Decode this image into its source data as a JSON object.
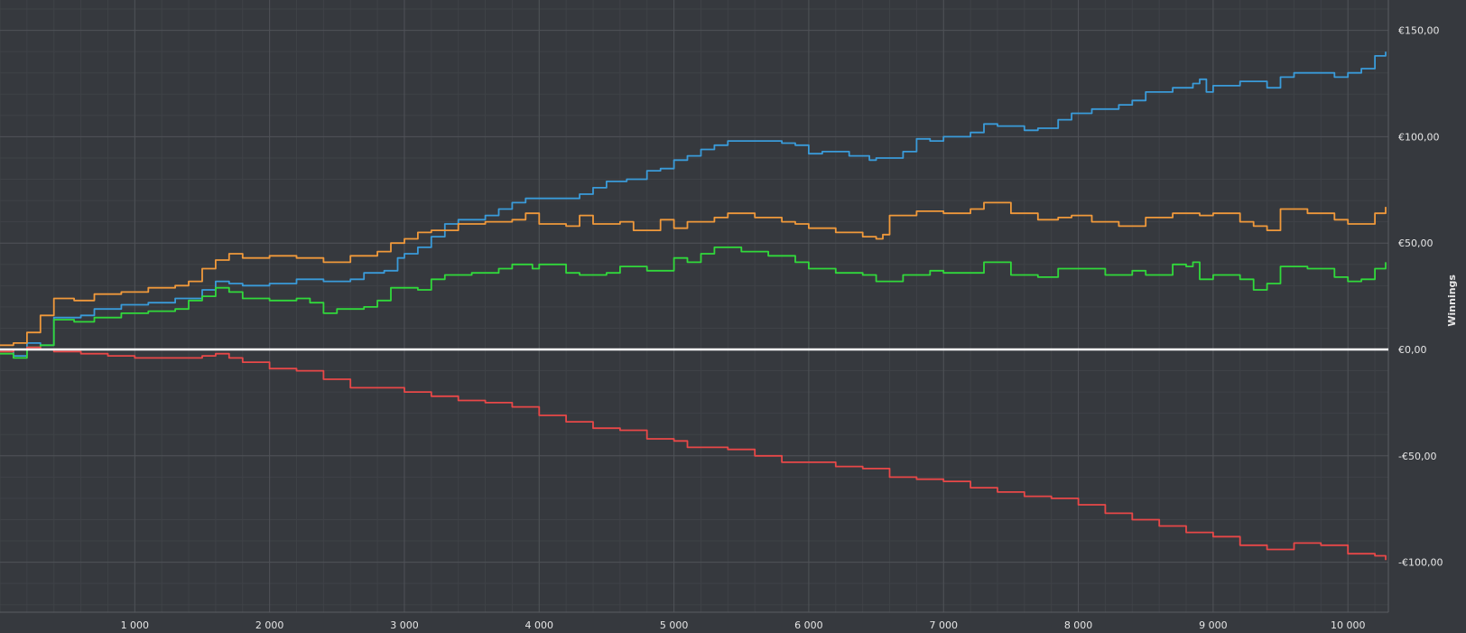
{
  "chart_data": {
    "type": "line",
    "title": "",
    "xlabel": "",
    "ylabel": "Winnings",
    "xlim": [
      0,
      10300
    ],
    "ylim": [
      -124,
      164
    ],
    "x_ticks": [
      1000,
      2000,
      3000,
      4000,
      5000,
      6000,
      7000,
      8000,
      9000,
      10000
    ],
    "x_tick_labels": [
      "1 000",
      "2 000",
      "3 000",
      "4 000",
      "5 000",
      "6 000",
      "7 000",
      "8 000",
      "9 000",
      "10 000"
    ],
    "y_ticks": [
      150,
      100,
      50,
      0,
      -50,
      -100
    ],
    "y_tick_labels": [
      "€150,00",
      "€100,00",
      "€50,00",
      "€0,00",
      "-€50,00",
      "-€100,00"
    ],
    "grid": true,
    "legend": "none",
    "zero_line_color": "#ffffff",
    "background_color": "#36393e",
    "grid_color": "#4f5257",
    "series": [
      {
        "color": "#3a9bd9",
        "points": [
          [
            0,
            0
          ],
          [
            100,
            -3
          ],
          [
            200,
            3
          ],
          [
            300,
            2
          ],
          [
            400,
            15
          ],
          [
            600,
            16
          ],
          [
            700,
            19
          ],
          [
            900,
            21
          ],
          [
            1100,
            22
          ],
          [
            1300,
            24
          ],
          [
            1500,
            28
          ],
          [
            1600,
            32
          ],
          [
            1700,
            31
          ],
          [
            1800,
            30
          ],
          [
            2000,
            31
          ],
          [
            2200,
            33
          ],
          [
            2400,
            32
          ],
          [
            2600,
            33
          ],
          [
            2700,
            36
          ],
          [
            2850,
            37
          ],
          [
            2950,
            43
          ],
          [
            3000,
            45
          ],
          [
            3100,
            48
          ],
          [
            3200,
            53
          ],
          [
            3300,
            59
          ],
          [
            3400,
            61
          ],
          [
            3600,
            63
          ],
          [
            3700,
            66
          ],
          [
            3800,
            69
          ],
          [
            3900,
            71
          ],
          [
            4100,
            71
          ],
          [
            4300,
            73
          ],
          [
            4400,
            76
          ],
          [
            4500,
            79
          ],
          [
            4650,
            80
          ],
          [
            4800,
            84
          ],
          [
            4900,
            85
          ],
          [
            5000,
            89
          ],
          [
            5100,
            91
          ],
          [
            5200,
            94
          ],
          [
            5300,
            96
          ],
          [
            5400,
            98
          ],
          [
            5700,
            98
          ],
          [
            5800,
            97
          ],
          [
            5900,
            96
          ],
          [
            6000,
            92
          ],
          [
            6100,
            93
          ],
          [
            6300,
            91
          ],
          [
            6450,
            89
          ],
          [
            6500,
            90
          ],
          [
            6700,
            93
          ],
          [
            6800,
            99
          ],
          [
            6900,
            98
          ],
          [
            7000,
            100
          ],
          [
            7100,
            100
          ],
          [
            7200,
            102
          ],
          [
            7300,
            106
          ],
          [
            7400,
            105
          ],
          [
            7600,
            103
          ],
          [
            7700,
            104
          ],
          [
            7850,
            108
          ],
          [
            7950,
            111
          ],
          [
            8100,
            113
          ],
          [
            8300,
            115
          ],
          [
            8400,
            117
          ],
          [
            8500,
            121
          ],
          [
            8700,
            123
          ],
          [
            8850,
            125
          ],
          [
            8900,
            127
          ],
          [
            8950,
            121
          ],
          [
            9000,
            124
          ],
          [
            9200,
            126
          ],
          [
            9300,
            126
          ],
          [
            9400,
            123
          ],
          [
            9500,
            128
          ],
          [
            9600,
            130
          ],
          [
            9800,
            130
          ],
          [
            9900,
            128
          ],
          [
            10000,
            130
          ],
          [
            10100,
            132
          ],
          [
            10200,
            138
          ],
          [
            10280,
            140
          ]
        ]
      },
      {
        "color": "#f0993b",
        "points": [
          [
            0,
            2
          ],
          [
            100,
            3
          ],
          [
            200,
            8
          ],
          [
            300,
            16
          ],
          [
            400,
            24
          ],
          [
            550,
            23
          ],
          [
            700,
            26
          ],
          [
            900,
            27
          ],
          [
            1100,
            29
          ],
          [
            1300,
            30
          ],
          [
            1400,
            32
          ],
          [
            1500,
            38
          ],
          [
            1600,
            42
          ],
          [
            1700,
            45
          ],
          [
            1800,
            43
          ],
          [
            2000,
            44
          ],
          [
            2200,
            43
          ],
          [
            2400,
            41
          ],
          [
            2600,
            44
          ],
          [
            2800,
            46
          ],
          [
            2900,
            50
          ],
          [
            3000,
            52
          ],
          [
            3100,
            55
          ],
          [
            3200,
            56
          ],
          [
            3400,
            59
          ],
          [
            3600,
            60
          ],
          [
            3800,
            61
          ],
          [
            3900,
            64
          ],
          [
            4000,
            59
          ],
          [
            4200,
            58
          ],
          [
            4300,
            63
          ],
          [
            4400,
            59
          ],
          [
            4600,
            60
          ],
          [
            4700,
            56
          ],
          [
            4900,
            61
          ],
          [
            5000,
            57
          ],
          [
            5100,
            60
          ],
          [
            5300,
            62
          ],
          [
            5400,
            64
          ],
          [
            5600,
            62
          ],
          [
            5800,
            60
          ],
          [
            5900,
            59
          ],
          [
            6000,
            57
          ],
          [
            6200,
            55
          ],
          [
            6400,
            53
          ],
          [
            6500,
            52
          ],
          [
            6550,
            54
          ],
          [
            6600,
            63
          ],
          [
            6800,
            65
          ],
          [
            7000,
            64
          ],
          [
            7200,
            66
          ],
          [
            7300,
            69
          ],
          [
            7500,
            64
          ],
          [
            7700,
            61
          ],
          [
            7850,
            62
          ],
          [
            7950,
            63
          ],
          [
            8100,
            60
          ],
          [
            8300,
            58
          ],
          [
            8500,
            62
          ],
          [
            8700,
            64
          ],
          [
            8900,
            63
          ],
          [
            9000,
            64
          ],
          [
            9200,
            60
          ],
          [
            9300,
            58
          ],
          [
            9400,
            56
          ],
          [
            9500,
            66
          ],
          [
            9700,
            64
          ],
          [
            9900,
            61
          ],
          [
            10000,
            59
          ],
          [
            10100,
            59
          ],
          [
            10200,
            64
          ],
          [
            10280,
            67
          ]
        ]
      },
      {
        "color": "#31d93b",
        "points": [
          [
            0,
            -2
          ],
          [
            100,
            -4
          ],
          [
            200,
            1
          ],
          [
            300,
            2
          ],
          [
            400,
            14
          ],
          [
            550,
            13
          ],
          [
            700,
            15
          ],
          [
            900,
            17
          ],
          [
            1100,
            18
          ],
          [
            1300,
            19
          ],
          [
            1400,
            23
          ],
          [
            1500,
            25
          ],
          [
            1600,
            29
          ],
          [
            1700,
            27
          ],
          [
            1800,
            24
          ],
          [
            2000,
            23
          ],
          [
            2200,
            24
          ],
          [
            2300,
            22
          ],
          [
            2400,
            17
          ],
          [
            2500,
            19
          ],
          [
            2700,
            20
          ],
          [
            2800,
            23
          ],
          [
            2900,
            29
          ],
          [
            3100,
            28
          ],
          [
            3200,
            33
          ],
          [
            3300,
            35
          ],
          [
            3500,
            36
          ],
          [
            3700,
            38
          ],
          [
            3800,
            40
          ],
          [
            3950,
            38
          ],
          [
            4000,
            40
          ],
          [
            4200,
            36
          ],
          [
            4300,
            35
          ],
          [
            4500,
            36
          ],
          [
            4600,
            39
          ],
          [
            4800,
            37
          ],
          [
            5000,
            43
          ],
          [
            5100,
            41
          ],
          [
            5200,
            45
          ],
          [
            5300,
            48
          ],
          [
            5500,
            46
          ],
          [
            5700,
            44
          ],
          [
            5900,
            41
          ],
          [
            6000,
            38
          ],
          [
            6200,
            36
          ],
          [
            6400,
            35
          ],
          [
            6500,
            32
          ],
          [
            6700,
            35
          ],
          [
            6900,
            37
          ],
          [
            7000,
            36
          ],
          [
            7200,
            36
          ],
          [
            7300,
            41
          ],
          [
            7500,
            35
          ],
          [
            7700,
            34
          ],
          [
            7850,
            38
          ],
          [
            8000,
            38
          ],
          [
            8200,
            35
          ],
          [
            8400,
            37
          ],
          [
            8500,
            35
          ],
          [
            8700,
            40
          ],
          [
            8800,
            39
          ],
          [
            8850,
            41
          ],
          [
            8900,
            33
          ],
          [
            9000,
            35
          ],
          [
            9200,
            33
          ],
          [
            9300,
            28
          ],
          [
            9400,
            31
          ],
          [
            9500,
            39
          ],
          [
            9700,
            38
          ],
          [
            9900,
            34
          ],
          [
            10000,
            32
          ],
          [
            10100,
            33
          ],
          [
            10200,
            38
          ],
          [
            10280,
            41
          ]
        ]
      },
      {
        "color": "#e84848",
        "points": [
          [
            0,
            -1
          ],
          [
            100,
            0
          ],
          [
            200,
            1
          ],
          [
            300,
            0
          ],
          [
            400,
            -1
          ],
          [
            600,
            -2
          ],
          [
            800,
            -3
          ],
          [
            1000,
            -4
          ],
          [
            1200,
            -4
          ],
          [
            1400,
            -4
          ],
          [
            1500,
            -3
          ],
          [
            1600,
            -2
          ],
          [
            1700,
            -4
          ],
          [
            1800,
            -6
          ],
          [
            2000,
            -9
          ],
          [
            2200,
            -10
          ],
          [
            2400,
            -14
          ],
          [
            2600,
            -18
          ],
          [
            2800,
            -18
          ],
          [
            3000,
            -20
          ],
          [
            3200,
            -22
          ],
          [
            3400,
            -24
          ],
          [
            3600,
            -25
          ],
          [
            3800,
            -27
          ],
          [
            4000,
            -31
          ],
          [
            4200,
            -34
          ],
          [
            4400,
            -37
          ],
          [
            4600,
            -38
          ],
          [
            4800,
            -42
          ],
          [
            5000,
            -43
          ],
          [
            5100,
            -46
          ],
          [
            5200,
            -46
          ],
          [
            5400,
            -47
          ],
          [
            5600,
            -50
          ],
          [
            5800,
            -53
          ],
          [
            6000,
            -53
          ],
          [
            6200,
            -55
          ],
          [
            6400,
            -56
          ],
          [
            6600,
            -60
          ],
          [
            6800,
            -61
          ],
          [
            7000,
            -62
          ],
          [
            7200,
            -65
          ],
          [
            7400,
            -67
          ],
          [
            7600,
            -69
          ],
          [
            7800,
            -70
          ],
          [
            8000,
            -73
          ],
          [
            8200,
            -77
          ],
          [
            8400,
            -80
          ],
          [
            8600,
            -83
          ],
          [
            8800,
            -86
          ],
          [
            9000,
            -88
          ],
          [
            9200,
            -92
          ],
          [
            9400,
            -94
          ],
          [
            9600,
            -91
          ],
          [
            9800,
            -92
          ],
          [
            10000,
            -96
          ],
          [
            10200,
            -97
          ],
          [
            10280,
            -99
          ]
        ]
      }
    ]
  }
}
